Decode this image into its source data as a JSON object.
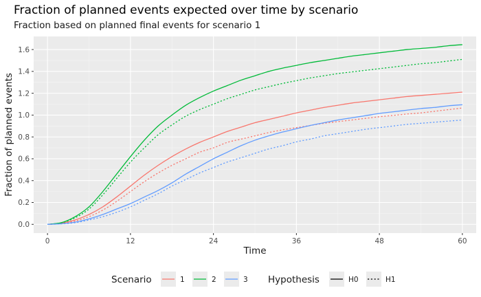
{
  "chart_data": {
    "type": "line",
    "title": "Fraction of planned events expected over time by scenario",
    "subtitle": "Fraction based on planned final events for scenario 1",
    "xlabel": "Time",
    "ylabel": "Fraction of planned events",
    "xlim": [
      -2,
      62
    ],
    "ylim": [
      -0.08,
      1.72
    ],
    "x_ticks": [
      0,
      12,
      24,
      36,
      48,
      60
    ],
    "y_ticks": [
      0.0,
      0.2,
      0.4,
      0.6,
      0.8,
      1.0,
      1.2,
      1.4,
      1.6
    ],
    "x_tick_labels": [
      "0",
      "12",
      "24",
      "36",
      "48",
      "60"
    ],
    "y_tick_labels": [
      "0.0",
      "0.2",
      "0.4",
      "0.6",
      "0.8",
      "1.0",
      "1.2",
      "1.4",
      "1.6"
    ],
    "grid": true,
    "legend_position": "bottom",
    "x": [
      0,
      2,
      4,
      6,
      8,
      10,
      12,
      14,
      16,
      18,
      20,
      22,
      24,
      26,
      28,
      30,
      32,
      34,
      36,
      38,
      40,
      42,
      44,
      46,
      48,
      50,
      52,
      54,
      56,
      58,
      60
    ],
    "series": [
      {
        "scenario": "1",
        "hypothesis": "H0",
        "color": "#F8766D",
        "dash": "solid",
        "values": [
          0.0,
          0.01,
          0.04,
          0.09,
          0.16,
          0.25,
          0.35,
          0.45,
          0.54,
          0.62,
          0.69,
          0.75,
          0.8,
          0.85,
          0.89,
          0.93,
          0.96,
          0.99,
          1.02,
          1.045,
          1.07,
          1.09,
          1.11,
          1.125,
          1.14,
          1.155,
          1.17,
          1.18,
          1.19,
          1.2,
          1.21
        ]
      },
      {
        "scenario": "1",
        "hypothesis": "H1",
        "color": "#F8766D",
        "dash": "dotted",
        "values": [
          0.0,
          0.008,
          0.03,
          0.07,
          0.13,
          0.21,
          0.3,
          0.39,
          0.47,
          0.54,
          0.6,
          0.66,
          0.7,
          0.75,
          0.78,
          0.81,
          0.84,
          0.865,
          0.885,
          0.905,
          0.925,
          0.94,
          0.955,
          0.97,
          0.985,
          0.997,
          1.01,
          1.02,
          1.035,
          1.05,
          1.065
        ]
      },
      {
        "scenario": "2",
        "hypothesis": "H0",
        "color": "#00BA38",
        "dash": "solid",
        "values": [
          0.0,
          0.015,
          0.07,
          0.16,
          0.3,
          0.46,
          0.62,
          0.77,
          0.9,
          1.0,
          1.09,
          1.16,
          1.22,
          1.27,
          1.32,
          1.36,
          1.4,
          1.43,
          1.455,
          1.48,
          1.5,
          1.52,
          1.54,
          1.555,
          1.57,
          1.585,
          1.6,
          1.61,
          1.62,
          1.635,
          1.645
        ]
      },
      {
        "scenario": "2",
        "hypothesis": "H1",
        "color": "#00BA38",
        "dash": "dotted",
        "values": [
          0.0,
          0.014,
          0.06,
          0.14,
          0.27,
          0.42,
          0.57,
          0.7,
          0.82,
          0.91,
          0.99,
          1.05,
          1.1,
          1.15,
          1.19,
          1.23,
          1.26,
          1.29,
          1.315,
          1.34,
          1.36,
          1.38,
          1.395,
          1.41,
          1.425,
          1.44,
          1.455,
          1.47,
          1.48,
          1.495,
          1.51
        ]
      },
      {
        "scenario": "3",
        "hypothesis": "H0",
        "color": "#619CFF",
        "dash": "solid",
        "values": [
          0.0,
          0.005,
          0.02,
          0.05,
          0.09,
          0.14,
          0.19,
          0.25,
          0.31,
          0.38,
          0.46,
          0.53,
          0.6,
          0.66,
          0.72,
          0.77,
          0.81,
          0.845,
          0.875,
          0.905,
          0.93,
          0.955,
          0.975,
          0.995,
          1.015,
          1.03,
          1.045,
          1.06,
          1.07,
          1.085,
          1.095
        ]
      },
      {
        "scenario": "3",
        "hypothesis": "H1",
        "color": "#619CFF",
        "dash": "dotted",
        "values": [
          0.0,
          0.004,
          0.015,
          0.04,
          0.07,
          0.11,
          0.16,
          0.22,
          0.28,
          0.35,
          0.41,
          0.47,
          0.52,
          0.57,
          0.61,
          0.65,
          0.69,
          0.72,
          0.755,
          0.78,
          0.81,
          0.83,
          0.85,
          0.87,
          0.885,
          0.9,
          0.915,
          0.925,
          0.935,
          0.945,
          0.955
        ]
      }
    ],
    "legend": {
      "scenario_title": "Scenario",
      "scenario_items": [
        {
          "label": "1",
          "color": "#F8766D"
        },
        {
          "label": "2",
          "color": "#00BA38"
        },
        {
          "label": "3",
          "color": "#619CFF"
        }
      ],
      "hypothesis_title": "Hypothesis",
      "hypothesis_items": [
        {
          "label": "H0",
          "dash": "solid"
        },
        {
          "label": "H1",
          "dash": "dotted"
        }
      ]
    }
  },
  "colors": {
    "panel_background": "#EBEBEB",
    "grid_major": "#FFFFFF",
    "axis_text": "#4D4D4D"
  }
}
